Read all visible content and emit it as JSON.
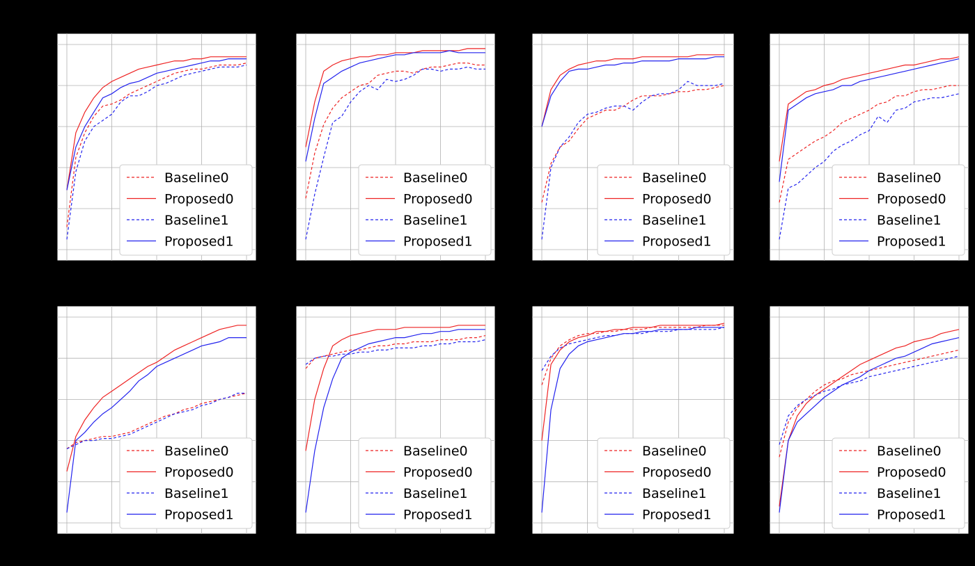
{
  "colors": {
    "red": "#ee2222",
    "blue": "#2222ee",
    "background": "#000000",
    "grid": "#b0b0b0"
  },
  "legend_labels": [
    "Baseline0",
    "Proposed0",
    "Baseline1",
    "Proposed1"
  ],
  "chart_data": [
    {
      "type": "line",
      "grid": true,
      "legend_position": "lower-right",
      "x": [
        1,
        2,
        3,
        4,
        5,
        6,
        7,
        8,
        9,
        10,
        11,
        12,
        13,
        14,
        15,
        16,
        17,
        18,
        19,
        20,
        21
      ],
      "ylim": [
        0,
        100
      ],
      "series": [
        {
          "name": "Baseline0",
          "style": "dashed",
          "color": "red",
          "values": [
            11,
            45,
            57,
            65,
            70,
            71,
            73,
            76,
            78,
            80,
            82,
            84,
            86,
            87,
            88,
            88,
            89,
            90,
            90,
            90,
            91
          ]
        },
        {
          "name": "Proposed0",
          "style": "solid",
          "color": "red",
          "values": [
            29,
            57,
            67,
            74,
            79,
            82,
            84,
            86,
            88,
            89,
            90,
            91,
            92,
            92,
            93,
            93,
            94,
            94,
            94,
            94,
            94
          ]
        },
        {
          "name": "Baseline1",
          "style": "dashed",
          "color": "blue",
          "values": [
            5,
            38,
            53,
            60,
            63,
            66,
            72,
            75,
            75,
            77,
            80,
            81,
            83,
            85,
            86,
            87,
            88,
            89,
            89,
            89,
            90
          ]
        },
        {
          "name": "Proposed1",
          "style": "solid",
          "color": "blue",
          "values": [
            29,
            50,
            60,
            67,
            74,
            76,
            79,
            81,
            82,
            84,
            86,
            87,
            88,
            89,
            90,
            91,
            92,
            92,
            93,
            93,
            93
          ]
        }
      ]
    },
    {
      "type": "line",
      "grid": true,
      "legend_position": "lower-right",
      "x": [
        1,
        2,
        3,
        4,
        5,
        6,
        7,
        8,
        9,
        10,
        11,
        12,
        13,
        14,
        15,
        16,
        17,
        18,
        19,
        20,
        21
      ],
      "ylim": [
        0,
        100
      ],
      "series": [
        {
          "name": "Baseline0",
          "style": "dashed",
          "color": "red",
          "values": [
            25,
            47,
            61,
            69,
            74,
            77,
            80,
            81,
            85,
            86,
            87,
            87,
            86,
            88,
            89,
            89,
            90,
            91,
            91,
            90,
            90
          ]
        },
        {
          "name": "Proposed0",
          "style": "solid",
          "color": "red",
          "values": [
            50,
            72,
            87,
            90,
            92,
            93,
            94,
            94,
            95,
            95,
            96,
            96,
            96,
            97,
            97,
            97,
            97,
            97,
            98,
            98,
            98
          ]
        },
        {
          "name": "Baseline1",
          "style": "dashed",
          "color": "blue",
          "values": [
            5,
            27,
            45,
            62,
            65,
            72,
            77,
            80,
            78,
            83,
            82,
            83,
            85,
            88,
            88,
            87,
            88,
            88,
            89,
            88,
            88
          ]
        },
        {
          "name": "Proposed1",
          "style": "solid",
          "color": "blue",
          "values": [
            43,
            64,
            81,
            84,
            87,
            89,
            91,
            92,
            93,
            94,
            95,
            95,
            96,
            96,
            96,
            96,
            97,
            96,
            96,
            96,
            96
          ]
        }
      ]
    },
    {
      "type": "line",
      "grid": true,
      "legend_position": "lower-right",
      "x": [
        1,
        2,
        3,
        4,
        5,
        6,
        7,
        8,
        9,
        10,
        11,
        12,
        13,
        14,
        15,
        16,
        17,
        18,
        19,
        20,
        21
      ],
      "ylim": [
        0,
        100
      ],
      "series": [
        {
          "name": "Baseline0",
          "style": "dashed",
          "color": "red",
          "values": [
            23,
            42,
            50,
            53,
            59,
            64,
            66,
            68,
            68,
            70,
            73,
            75,
            75,
            75,
            76,
            77,
            77,
            78,
            78,
            79,
            80
          ]
        },
        {
          "name": "Proposed0",
          "style": "solid",
          "color": "red",
          "values": [
            60,
            78,
            85,
            88,
            90,
            91,
            92,
            92,
            93,
            93,
            93,
            94,
            94,
            94,
            94,
            94,
            94,
            95,
            95,
            95,
            95
          ]
        },
        {
          "name": "Baseline1",
          "style": "dashed",
          "color": "blue",
          "values": [
            5,
            40,
            50,
            55,
            62,
            66,
            67,
            69,
            70,
            70,
            68,
            72,
            75,
            76,
            76,
            78,
            82,
            80,
            80,
            80,
            81
          ]
        },
        {
          "name": "Proposed1",
          "style": "solid",
          "color": "blue",
          "values": [
            60,
            75,
            82,
            87,
            88,
            88,
            89,
            90,
            90,
            91,
            91,
            92,
            92,
            92,
            92,
            93,
            93,
            93,
            93,
            94,
            94
          ]
        }
      ]
    },
    {
      "type": "line",
      "grid": true,
      "legend_position": "lower-right",
      "x": [
        1,
        2,
        3,
        4,
        5,
        6,
        7,
        8,
        9,
        10,
        11,
        12,
        13,
        14,
        15,
        16,
        17,
        18,
        19,
        20,
        21
      ],
      "ylim": [
        0,
        100
      ],
      "series": [
        {
          "name": "Baseline0",
          "style": "dashed",
          "color": "red",
          "values": [
            23,
            44,
            47,
            50,
            53,
            55,
            58,
            62,
            64,
            66,
            68,
            71,
            72,
            75,
            75,
            77,
            78,
            78,
            79,
            80,
            80
          ]
        },
        {
          "name": "Proposed0",
          "style": "solid",
          "color": "red",
          "values": [
            43,
            71,
            74,
            77,
            78,
            80,
            81,
            83,
            84,
            85,
            86,
            87,
            88,
            89,
            90,
            90,
            91,
            92,
            93,
            93,
            94
          ]
        },
        {
          "name": "Baseline1",
          "style": "dashed",
          "color": "blue",
          "values": [
            5,
            30,
            32,
            36,
            40,
            43,
            48,
            51,
            53,
            56,
            58,
            65,
            62,
            68,
            69,
            72,
            73,
            74,
            74,
            75,
            76
          ]
        },
        {
          "name": "Proposed1",
          "style": "solid",
          "color": "blue",
          "values": [
            33,
            68,
            71,
            74,
            76,
            77,
            78,
            80,
            80,
            82,
            83,
            84,
            85,
            86,
            87,
            88,
            89,
            90,
            91,
            92,
            93
          ]
        }
      ]
    },
    {
      "type": "line",
      "grid": true,
      "legend_position": "lower-right",
      "x": [
        1,
        2,
        3,
        4,
        5,
        6,
        7,
        8,
        9,
        10,
        11,
        12,
        13,
        14,
        15,
        16,
        17,
        18,
        19,
        20,
        21
      ],
      "ylim": [
        0,
        100
      ],
      "series": [
        {
          "name": "Baseline0",
          "style": "dashed",
          "color": "red",
          "values": [
            36,
            39,
            40,
            41,
            42,
            42,
            43,
            44,
            46,
            48,
            50,
            52,
            53,
            55,
            56,
            58,
            59,
            60,
            61,
            62,
            63
          ]
        },
        {
          "name": "Proposed0",
          "style": "solid",
          "color": "red",
          "values": [
            25,
            42,
            50,
            56,
            61,
            64,
            67,
            70,
            73,
            76,
            78,
            81,
            84,
            86,
            88,
            90,
            92,
            94,
            95,
            96,
            96
          ]
        },
        {
          "name": "Baseline1",
          "style": "dashed",
          "color": "blue",
          "values": [
            36,
            38,
            40,
            40,
            41,
            41,
            42,
            43,
            45,
            47,
            49,
            51,
            53,
            54,
            55,
            57,
            58,
            60,
            61,
            63,
            63
          ]
        },
        {
          "name": "Proposed1",
          "style": "solid",
          "color": "blue",
          "values": [
            5,
            40,
            44,
            49,
            53,
            56,
            60,
            64,
            69,
            72,
            76,
            78,
            80,
            82,
            84,
            86,
            87,
            88,
            90,
            90,
            90
          ]
        }
      ]
    },
    {
      "type": "line",
      "grid": true,
      "legend_position": "lower-right",
      "x": [
        1,
        2,
        3,
        4,
        5,
        6,
        7,
        8,
        9,
        10,
        11,
        12,
        13,
        14,
        15,
        16,
        17,
        18,
        19,
        20,
        21
      ],
      "ylim": [
        0,
        100
      ],
      "series": [
        {
          "name": "Baseline0",
          "style": "dashed",
          "color": "red",
          "values": [
            75,
            80,
            81,
            82,
            83,
            84,
            84,
            85,
            86,
            86,
            87,
            87,
            88,
            88,
            88,
            89,
            89,
            89,
            90,
            90,
            91
          ]
        },
        {
          "name": "Proposed0",
          "style": "solid",
          "color": "red",
          "values": [
            35,
            60,
            75,
            86,
            89,
            91,
            92,
            93,
            94,
            94,
            94,
            95,
            95,
            95,
            95,
            95,
            95,
            96,
            96,
            96,
            96
          ]
        },
        {
          "name": "Baseline1",
          "style": "dashed",
          "color": "blue",
          "values": [
            77,
            80,
            81,
            81,
            82,
            82,
            83,
            83,
            84,
            84,
            85,
            85,
            85,
            86,
            86,
            87,
            87,
            88,
            88,
            88,
            89
          ]
        },
        {
          "name": "Proposed1",
          "style": "solid",
          "color": "blue",
          "values": [
            5,
            35,
            56,
            70,
            80,
            83,
            85,
            87,
            88,
            89,
            90,
            90,
            91,
            92,
            92,
            93,
            93,
            94,
            94,
            94,
            94
          ]
        }
      ]
    },
    {
      "type": "line",
      "grid": true,
      "legend_position": "lower-right",
      "x": [
        1,
        2,
        3,
        4,
        5,
        6,
        7,
        8,
        9,
        10,
        11,
        12,
        13,
        14,
        15,
        16,
        17,
        18,
        19,
        20,
        21
      ],
      "ylim": [
        0,
        100
      ],
      "series": [
        {
          "name": "Baseline0",
          "style": "dashed",
          "color": "red",
          "values": [
            67,
            80,
            86,
            89,
            91,
            92,
            92,
            93,
            93,
            94,
            94,
            94,
            95,
            95,
            95,
            95,
            95,
            95,
            96,
            96,
            96
          ]
        },
        {
          "name": "Proposed0",
          "style": "solid",
          "color": "red",
          "values": [
            40,
            77,
            84,
            88,
            90,
            91,
            93,
            93,
            94,
            94,
            95,
            95,
            95,
            96,
            96,
            96,
            96,
            96,
            96,
            96,
            97
          ]
        },
        {
          "name": "Baseline1",
          "style": "dashed",
          "color": "blue",
          "values": [
            74,
            81,
            85,
            87,
            88,
            89,
            90,
            91,
            91,
            92,
            92,
            92,
            93,
            93,
            93,
            94,
            94,
            94,
            94,
            94,
            95
          ]
        },
        {
          "name": "Proposed1",
          "style": "solid",
          "color": "blue",
          "values": [
            5,
            55,
            75,
            82,
            86,
            88,
            89,
            90,
            91,
            92,
            92,
            93,
            93,
            94,
            94,
            94,
            94,
            95,
            95,
            95,
            95
          ]
        }
      ]
    },
    {
      "type": "line",
      "grid": true,
      "legend_position": "lower-right",
      "x": [
        1,
        2,
        3,
        4,
        5,
        6,
        7,
        8,
        9,
        10,
        11,
        12,
        13,
        14,
        15,
        16,
        17,
        18,
        19,
        20,
        21
      ],
      "ylim": [
        0,
        100
      ],
      "series": [
        {
          "name": "Baseline0",
          "style": "dashed",
          "color": "red",
          "values": [
            32,
            49,
            56,
            60,
            64,
            67,
            69,
            70,
            72,
            73,
            74,
            75,
            76,
            77,
            78,
            79,
            80,
            81,
            82,
            83,
            84
          ]
        },
        {
          "name": "Proposed0",
          "style": "solid",
          "color": "red",
          "values": [
            8,
            40,
            52,
            58,
            62,
            65,
            68,
            71,
            74,
            77,
            79,
            81,
            83,
            85,
            86,
            88,
            89,
            90,
            92,
            93,
            94
          ]
        },
        {
          "name": "Baseline1",
          "style": "dashed",
          "color": "blue",
          "values": [
            38,
            52,
            57,
            60,
            62,
            64,
            65,
            67,
            68,
            69,
            71,
            72,
            73,
            74,
            75,
            76,
            77,
            78,
            79,
            80,
            81
          ]
        },
        {
          "name": "Proposed1",
          "style": "solid",
          "color": "blue",
          "values": [
            5,
            40,
            49,
            53,
            57,
            61,
            64,
            67,
            69,
            71,
            74,
            76,
            78,
            80,
            81,
            83,
            85,
            87,
            88,
            89,
            90
          ]
        }
      ]
    }
  ]
}
